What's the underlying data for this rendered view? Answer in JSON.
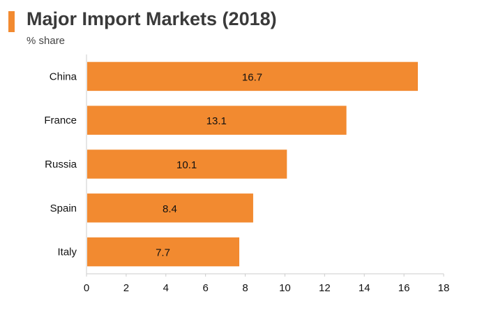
{
  "header": {
    "title": "Major Import Markets (2018)",
    "subtitle": "% share"
  },
  "colors": {
    "accent": "#f28a30",
    "bar": "#f28a30",
    "axis": "#cccccc"
  },
  "chart_data": {
    "type": "bar",
    "orientation": "horizontal",
    "title": "Major Import Markets (2018)",
    "subtitle": "% share",
    "categories": [
      "China",
      "France",
      "Russia",
      "Spain",
      "Italy"
    ],
    "values": [
      16.7,
      13.1,
      10.1,
      8.4,
      7.7
    ],
    "data_labels": [
      "16.7",
      "13.1",
      "10.1",
      "8.4",
      "7.7"
    ],
    "xlim": [
      0,
      18
    ],
    "xticks": [
      0,
      2,
      4,
      6,
      8,
      10,
      12,
      14,
      16,
      18
    ],
    "grid": false,
    "legend": "none"
  }
}
